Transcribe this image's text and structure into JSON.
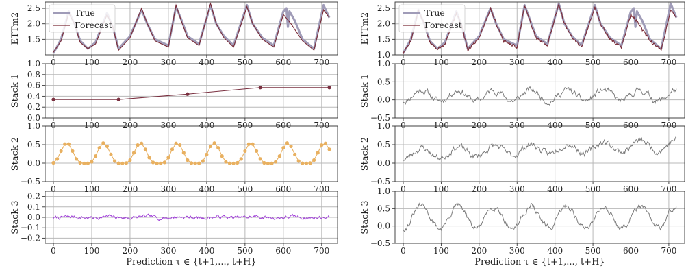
{
  "chart_data": {
    "type": "line",
    "x_range": [
      0,
      720
    ],
    "x_ticks": [
      0,
      100,
      200,
      300,
      400,
      500,
      600,
      700
    ],
    "xlabel": "Prediction τ ∈ {t+1,..., t+H}",
    "grid": true,
    "colors": {
      "true": "#a09cb8",
      "forecast": "#7a2a36",
      "stack1": "#7a3040",
      "stack2": "#e8b060",
      "stack3": "#a040d8",
      "gray": "#7a7a7a"
    },
    "panels": [
      {
        "id": "left-ettm2",
        "column": 0,
        "row": 0,
        "ylabel": "ETTm2",
        "ylim": [
          1.0,
          2.7
        ],
        "yticks": [
          1.5,
          2.0,
          2.5
        ],
        "legend": {
          "placement": "top-left",
          "entries": [
            "True",
            "Forecast"
          ]
        },
        "series": [
          {
            "name": "True",
            "kind": "thick",
            "points": [
              [
                0,
                1.05
              ],
              [
                20,
                1.5
              ],
              [
                40,
                2.4
              ],
              [
                55,
                2.0
              ],
              [
                70,
                1.45
              ],
              [
                90,
                1.2
              ],
              [
                110,
                1.4
              ],
              [
                140,
                2.35
              ],
              [
                155,
                1.9
              ],
              [
                170,
                1.2
              ],
              [
                200,
                1.6
              ],
              [
                230,
                2.45
              ],
              [
                245,
                2.0
              ],
              [
                265,
                1.5
              ],
              [
                300,
                1.3
              ],
              [
                320,
                2.55
              ],
              [
                335,
                2.1
              ],
              [
                350,
                1.6
              ],
              [
                380,
                1.35
              ],
              [
                410,
                2.6
              ],
              [
                425,
                2.0
              ],
              [
                445,
                1.6
              ],
              [
                470,
                1.3
              ],
              [
                505,
                2.6
              ],
              [
                520,
                2.0
              ],
              [
                545,
                1.55
              ],
              [
                575,
                1.3
              ],
              [
                600,
                2.4
              ],
              [
                608,
                2.5
              ],
              [
                612,
                1.9
              ],
              [
                616,
                2.4
              ],
              [
                630,
                2.1
              ],
              [
                650,
                1.5
              ],
              [
                680,
                1.2
              ],
              [
                705,
                2.6
              ],
              [
                720,
                2.2
              ]
            ]
          },
          {
            "name": "Forecast",
            "kind": "thin",
            "points": [
              [
                0,
                1.08
              ],
              [
                20,
                1.45
              ],
              [
                40,
                2.35
              ],
              [
                55,
                2.0
              ],
              [
                70,
                1.4
              ],
              [
                90,
                1.2
              ],
              [
                110,
                1.35
              ],
              [
                140,
                2.3
              ],
              [
                155,
                1.9
              ],
              [
                170,
                1.15
              ],
              [
                200,
                1.55
              ],
              [
                230,
                2.5
              ],
              [
                245,
                2.0
              ],
              [
                265,
                1.45
              ],
              [
                300,
                1.25
              ],
              [
                320,
                2.6
              ],
              [
                335,
                2.05
              ],
              [
                350,
                1.55
              ],
              [
                380,
                1.3
              ],
              [
                410,
                2.65
              ],
              [
                425,
                2.0
              ],
              [
                445,
                1.55
              ],
              [
                470,
                1.25
              ],
              [
                505,
                2.55
              ],
              [
                520,
                2.0
              ],
              [
                545,
                1.5
              ],
              [
                575,
                1.25
              ],
              [
                600,
                2.3
              ],
              [
                620,
                2.0
              ],
              [
                650,
                1.45
              ],
              [
                680,
                1.15
              ],
              [
                705,
                2.45
              ],
              [
                720,
                2.2
              ]
            ]
          }
        ]
      },
      {
        "id": "left-stack1",
        "column": 0,
        "row": 1,
        "ylabel": "Stack 1",
        "ylim": [
          0.0,
          1.0
        ],
        "yticks": [
          0.0,
          0.2,
          0.4,
          0.6,
          0.8,
          1.0
        ],
        "series": [
          {
            "name": "Stack 1",
            "kind": "markers",
            "points": [
              [
                0,
                0.34
              ],
              [
                170,
                0.34
              ],
              [
                350,
                0.44
              ],
              [
                540,
                0.56
              ],
              [
                720,
                0.56
              ]
            ]
          }
        ]
      },
      {
        "id": "left-stack2",
        "column": 0,
        "row": 2,
        "ylabel": "Stack 2",
        "ylim": [
          -0.5,
          1.0
        ],
        "yticks": [
          -0.5,
          0.0,
          0.5,
          1.0
        ],
        "series": [
          {
            "name": "Stack 2",
            "kind": "markers",
            "periodic": {
              "period": 96,
              "amplitude": 0.55,
              "offset": 0.2,
              "peak": 35,
              "start": 0,
              "end": 720,
              "step": 10
            }
          }
        ]
      },
      {
        "id": "left-stack3",
        "column": 0,
        "row": 3,
        "ylabel": "Stack 3",
        "ylim": [
          -0.25,
          0.25
        ],
        "yticks": [
          -0.2,
          -0.1,
          0.0,
          0.1,
          0.2
        ],
        "series": [
          {
            "name": "Stack 3",
            "kind": "noisy",
            "noise": {
              "center": 0.0,
              "amp": 0.012,
              "period": 96,
              "wave": 0.005,
              "seed": 7
            }
          }
        ]
      },
      {
        "id": "right-ettm2",
        "column": 1,
        "row": 0,
        "ylabel": "ETTm2",
        "ylim": [
          1.0,
          2.7
        ],
        "yticks": [
          1.0,
          1.5,
          2.0,
          2.5
        ],
        "legend": {
          "placement": "top-left",
          "entries": [
            "True",
            "Forecast"
          ]
        },
        "series": [
          {
            "name": "True",
            "kind": "thick",
            "points": [
              [
                0,
                1.05
              ],
              [
                20,
                1.5
              ],
              [
                40,
                2.45
              ],
              [
                55,
                2.0
              ],
              [
                70,
                1.45
              ],
              [
                90,
                1.2
              ],
              [
                110,
                1.4
              ],
              [
                140,
                2.4
              ],
              [
                155,
                1.9
              ],
              [
                170,
                1.2
              ],
              [
                200,
                1.6
              ],
              [
                230,
                2.5
              ],
              [
                245,
                2.0
              ],
              [
                265,
                1.5
              ],
              [
                300,
                1.3
              ],
              [
                320,
                2.6
              ],
              [
                335,
                2.1
              ],
              [
                350,
                1.6
              ],
              [
                380,
                1.35
              ],
              [
                410,
                2.65
              ],
              [
                425,
                2.0
              ],
              [
                445,
                1.6
              ],
              [
                470,
                1.3
              ],
              [
                505,
                2.6
              ],
              [
                520,
                2.0
              ],
              [
                545,
                1.55
              ],
              [
                575,
                1.3
              ],
              [
                600,
                2.4
              ],
              [
                608,
                2.5
              ],
              [
                612,
                1.9
              ],
              [
                616,
                2.4
              ],
              [
                630,
                2.1
              ],
              [
                650,
                1.5
              ],
              [
                680,
                1.2
              ],
              [
                705,
                2.65
              ],
              [
                720,
                2.2
              ]
            ]
          },
          {
            "name": "Forecast",
            "kind": "jagged",
            "points": [
              [
                0,
                1.05
              ],
              [
                20,
                1.45
              ],
              [
                40,
                2.4
              ],
              [
                55,
                2.0
              ],
              [
                70,
                1.4
              ],
              [
                90,
                1.2
              ],
              [
                110,
                1.35
              ],
              [
                140,
                2.35
              ],
              [
                155,
                1.9
              ],
              [
                170,
                1.15
              ],
              [
                200,
                1.55
              ],
              [
                230,
                2.5
              ],
              [
                245,
                2.0
              ],
              [
                265,
                1.45
              ],
              [
                300,
                1.25
              ],
              [
                320,
                2.6
              ],
              [
                335,
                2.05
              ],
              [
                350,
                1.55
              ],
              [
                380,
                1.3
              ],
              [
                410,
                2.65
              ],
              [
                425,
                2.0
              ],
              [
                445,
                1.55
              ],
              [
                470,
                1.25
              ],
              [
                505,
                2.55
              ],
              [
                520,
                2.0
              ],
              [
                545,
                1.5
              ],
              [
                575,
                1.25
              ],
              [
                600,
                2.3
              ],
              [
                620,
                2.0
              ],
              [
                650,
                1.45
              ],
              [
                680,
                1.15
              ],
              [
                705,
                2.45
              ],
              [
                720,
                2.2
              ]
            ]
          }
        ]
      },
      {
        "id": "right-stack1",
        "column": 1,
        "row": 1,
        "ylabel": "Stack 1",
        "ylim": [
          -0.5,
          1.0
        ],
        "yticks": [
          -0.5,
          0.0,
          0.5,
          1.0
        ],
        "series": [
          {
            "name": "Stack 1",
            "kind": "noisy",
            "noise": {
              "center": 0.12,
              "amp": 0.06,
              "period": 96,
              "wave": 0.15,
              "seed": 11
            }
          }
        ]
      },
      {
        "id": "right-stack2",
        "column": 1,
        "row": 2,
        "ylabel": "Stack 2",
        "ylim": [
          -0.5,
          1.0
        ],
        "yticks": [
          -0.5,
          0.0,
          0.5,
          1.0
        ],
        "series": [
          {
            "name": "Stack 2",
            "kind": "noisy",
            "noise": {
              "center": 0.25,
              "amp": 0.06,
              "period": 96,
              "wave": 0.14,
              "seed": 23,
              "trend": 0.25
            }
          }
        ]
      },
      {
        "id": "right-stack3",
        "column": 1,
        "row": 3,
        "ylabel": "Stack 3",
        "ylim": [
          -0.5,
          1.0
        ],
        "yticks": [
          -0.5,
          0.0,
          0.5,
          1.0
        ],
        "series": [
          {
            "name": "Stack 3",
            "kind": "noisy",
            "noise": {
              "center": 0.25,
              "amp": 0.06,
              "period": 96,
              "wave": 0.32,
              "seed": 31
            }
          }
        ]
      }
    ]
  }
}
